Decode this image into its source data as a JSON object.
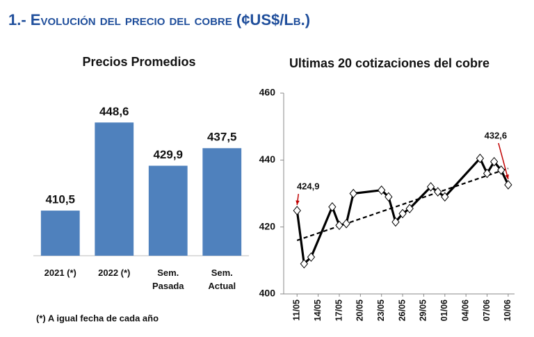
{
  "header": {
    "title": "1.- Evolución del precio del cobre (¢US$/Lb.)"
  },
  "chart_data": [
    {
      "type": "bar",
      "title": "Precios Promedios",
      "categories": [
        "2021 (*)",
        "2022 (*)",
        "Sem. Pasada",
        "Sem. Actual"
      ],
      "values": [
        410.5,
        448.6,
        429.9,
        437.5
      ],
      "value_labels": [
        "410,5",
        "448,6",
        "429,9",
        "437,5"
      ],
      "color": "#4f81bd",
      "ylim": [
        391,
        455
      ],
      "footnote": "(*) A igual fecha de cada año"
    },
    {
      "type": "line",
      "title": "Ultimas 20 cotizaciones del cobre",
      "x": [
        0,
        1,
        2,
        5,
        6,
        7,
        8,
        12,
        13,
        14,
        15,
        16,
        19,
        20,
        21,
        26,
        27,
        28,
        29,
        30
      ],
      "values": [
        424.9,
        409,
        411,
        426,
        420.5,
        421,
        430,
        431,
        429,
        421.5,
        424,
        425.5,
        432,
        430.5,
        429,
        440.5,
        436,
        439.5,
        437,
        432.6
      ],
      "color": "#000000",
      "trend": {
        "x": [
          0,
          30
        ],
        "values": [
          416,
          437.5
        ]
      },
      "annotations": [
        {
          "text": "424,9",
          "index": 0
        },
        {
          "text": "432,6",
          "index": 19
        }
      ],
      "xlim": [
        -1.9,
        30.9
      ],
      "xticks": [
        {
          "value": 0,
          "label": "11/05"
        },
        {
          "value": 3,
          "label": "14/05"
        },
        {
          "value": 6,
          "label": "17/05"
        },
        {
          "value": 9,
          "label": "20/05"
        },
        {
          "value": 12,
          "label": "23/05"
        },
        {
          "value": 15,
          "label": "26/05"
        },
        {
          "value": 18,
          "label": "29/05"
        },
        {
          "value": 21,
          "label": "01/06"
        },
        {
          "value": 24,
          "label": "04/06"
        },
        {
          "value": 27,
          "label": "07/06"
        },
        {
          "value": 30,
          "label": "10/06"
        }
      ],
      "ylim": [
        400,
        460
      ],
      "yticks": [
        400,
        420,
        440,
        460
      ]
    }
  ]
}
